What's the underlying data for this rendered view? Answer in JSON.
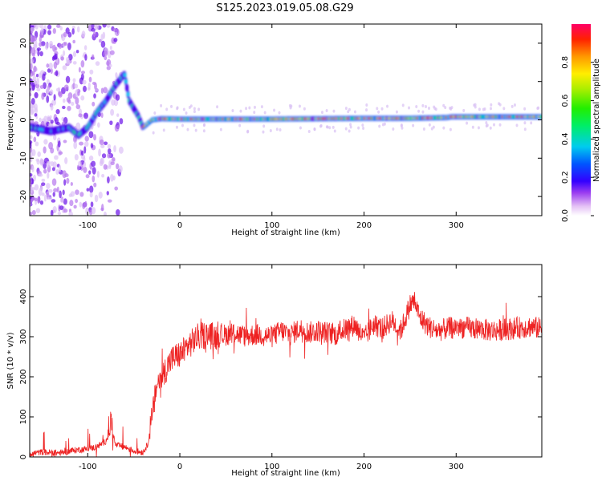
{
  "title": "S125.2023.019.05.08.G29",
  "chart_data": [
    {
      "type": "heatmap",
      "xlabel": "Height of straight line (km)",
      "ylabel": "Frequency (Hz)",
      "xlim": [
        -163,
        393
      ],
      "ylim": [
        -25,
        25
      ],
      "xticks": [
        -100,
        0,
        100,
        200,
        300
      ],
      "yticks": [
        -20,
        -10,
        0,
        10,
        20
      ],
      "colorbar": {
        "label": "Normalized spectral amplitude",
        "range": [
          0,
          1
        ],
        "ticks": [
          "0.0",
          "0.2",
          "0.4",
          "0.6",
          "0.8"
        ]
      },
      "ridge": {
        "x": [
          -160,
          -140,
          -120,
          -110,
          -100,
          -90,
          -80,
          -70,
          -60,
          -55,
          -50,
          -45,
          -40,
          -35,
          -30,
          -20,
          0,
          100,
          200,
          250,
          290,
          295,
          393
        ],
        "y": [
          -2,
          -3,
          -2,
          -4,
          -2,
          2,
          5,
          9,
          12,
          5,
          3,
          1,
          -2,
          -1,
          0,
          0.3,
          0.2,
          0.2,
          0.4,
          0.4,
          0.6,
          0.8,
          0.8
        ]
      }
    },
    {
      "type": "line",
      "xlabel": "Height of straight line (km)",
      "ylabel": "SNR (10 * v/v)",
      "xlim": [
        -163,
        393
      ],
      "ylim": [
        0,
        480
      ],
      "xticks": [
        -100,
        0,
        100,
        200,
        300
      ],
      "yticks": [
        0,
        100,
        200,
        300,
        400
      ],
      "color": "#ee2222",
      "x": [
        -163,
        -150,
        -130,
        -110,
        -100,
        -90,
        -80,
        -75,
        -70,
        -60,
        -50,
        -40,
        -35,
        -30,
        -25,
        -20,
        -15,
        -10,
        -5,
        0,
        10,
        20,
        30,
        40,
        50,
        60,
        70,
        80,
        90,
        100,
        110,
        120,
        130,
        140,
        150,
        160,
        170,
        180,
        190,
        200,
        210,
        220,
        230,
        240,
        250,
        255,
        260,
        270,
        280,
        290,
        300,
        320,
        340,
        360,
        380,
        393
      ],
      "values": [
        8,
        12,
        10,
        18,
        20,
        25,
        40,
        90,
        30,
        25,
        15,
        12,
        30,
        100,
        180,
        200,
        220,
        240,
        250,
        255,
        280,
        300,
        305,
        300,
        305,
        310,
        300,
        305,
        305,
        300,
        315,
        305,
        320,
        310,
        315,
        310,
        305,
        320,
        330,
        295,
        330,
        320,
        340,
        315,
        380,
        390,
        350,
        325,
        315,
        320,
        325,
        320,
        315,
        320,
        325,
        320
      ]
    }
  ]
}
